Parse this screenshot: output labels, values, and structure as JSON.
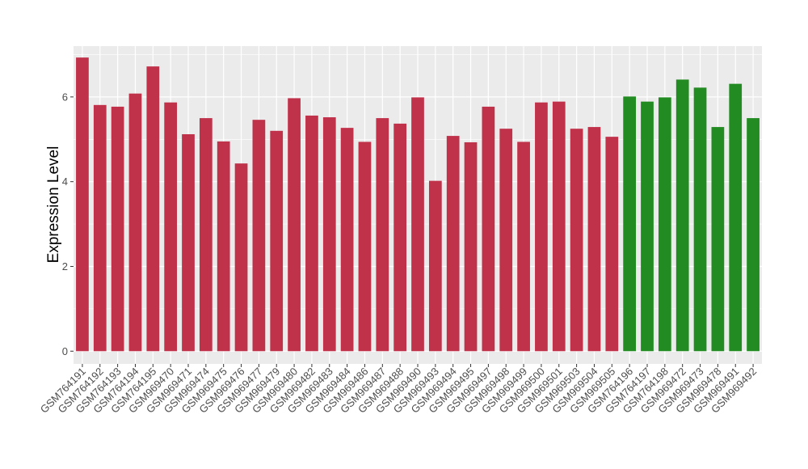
{
  "chart_data": {
    "type": "bar",
    "title": "",
    "xlabel": "",
    "ylabel": "Expression Level",
    "ylim": [
      -0.3,
      7.2
    ],
    "yticks": [
      0,
      2,
      4,
      6
    ],
    "grid": true,
    "legend": "none",
    "panel_background": "#ebebeb",
    "grid_color": "#ffffff",
    "categories": [
      "GSM764191",
      "GSM764192",
      "GSM764193",
      "GSM764194",
      "GSM764195",
      "GSM969470",
      "GSM969471",
      "GSM969474",
      "GSM969475",
      "GSM969476",
      "GSM969477",
      "GSM969479",
      "GSM969480",
      "GSM969482",
      "GSM969483",
      "GSM969484",
      "GSM969486",
      "GSM969487",
      "GSM969488",
      "GSM969490",
      "GSM969493",
      "GSM969494",
      "GSM969495",
      "GSM969497",
      "GSM969498",
      "GSM969499",
      "GSM969500",
      "GSM969501",
      "GSM969503",
      "GSM969504",
      "GSM969505",
      "GSM764196",
      "GSM764197",
      "GSM764198",
      "GSM969472",
      "GSM969473",
      "GSM969478",
      "GSM969491",
      "GSM969492"
    ],
    "values": [
      6.93,
      5.81,
      5.77,
      6.08,
      6.72,
      5.87,
      5.12,
      5.5,
      4.95,
      4.43,
      5.46,
      5.2,
      5.97,
      5.56,
      5.52,
      5.27,
      4.94,
      5.5,
      5.37,
      5.99,
      4.02,
      5.08,
      4.93,
      5.77,
      5.25,
      4.94,
      5.87,
      5.89,
      5.25,
      5.29,
      5.06,
      6.01,
      5.89,
      5.99,
      6.41,
      6.22,
      5.29,
      6.31,
      5.5
    ],
    "colors": [
      "#c0314a",
      "#c0314a",
      "#c0314a",
      "#c0314a",
      "#c0314a",
      "#c0314a",
      "#c0314a",
      "#c0314a",
      "#c0314a",
      "#c0314a",
      "#c0314a",
      "#c0314a",
      "#c0314a",
      "#c0314a",
      "#c0314a",
      "#c0314a",
      "#c0314a",
      "#c0314a",
      "#c0314a",
      "#c0314a",
      "#c0314a",
      "#c0314a",
      "#c0314a",
      "#c0314a",
      "#c0314a",
      "#c0314a",
      "#c0314a",
      "#c0314a",
      "#c0314a",
      "#c0314a",
      "#c0314a",
      "#228b22",
      "#228b22",
      "#228b22",
      "#228b22",
      "#228b22",
      "#228b22",
      "#228b22",
      "#228b22"
    ]
  }
}
